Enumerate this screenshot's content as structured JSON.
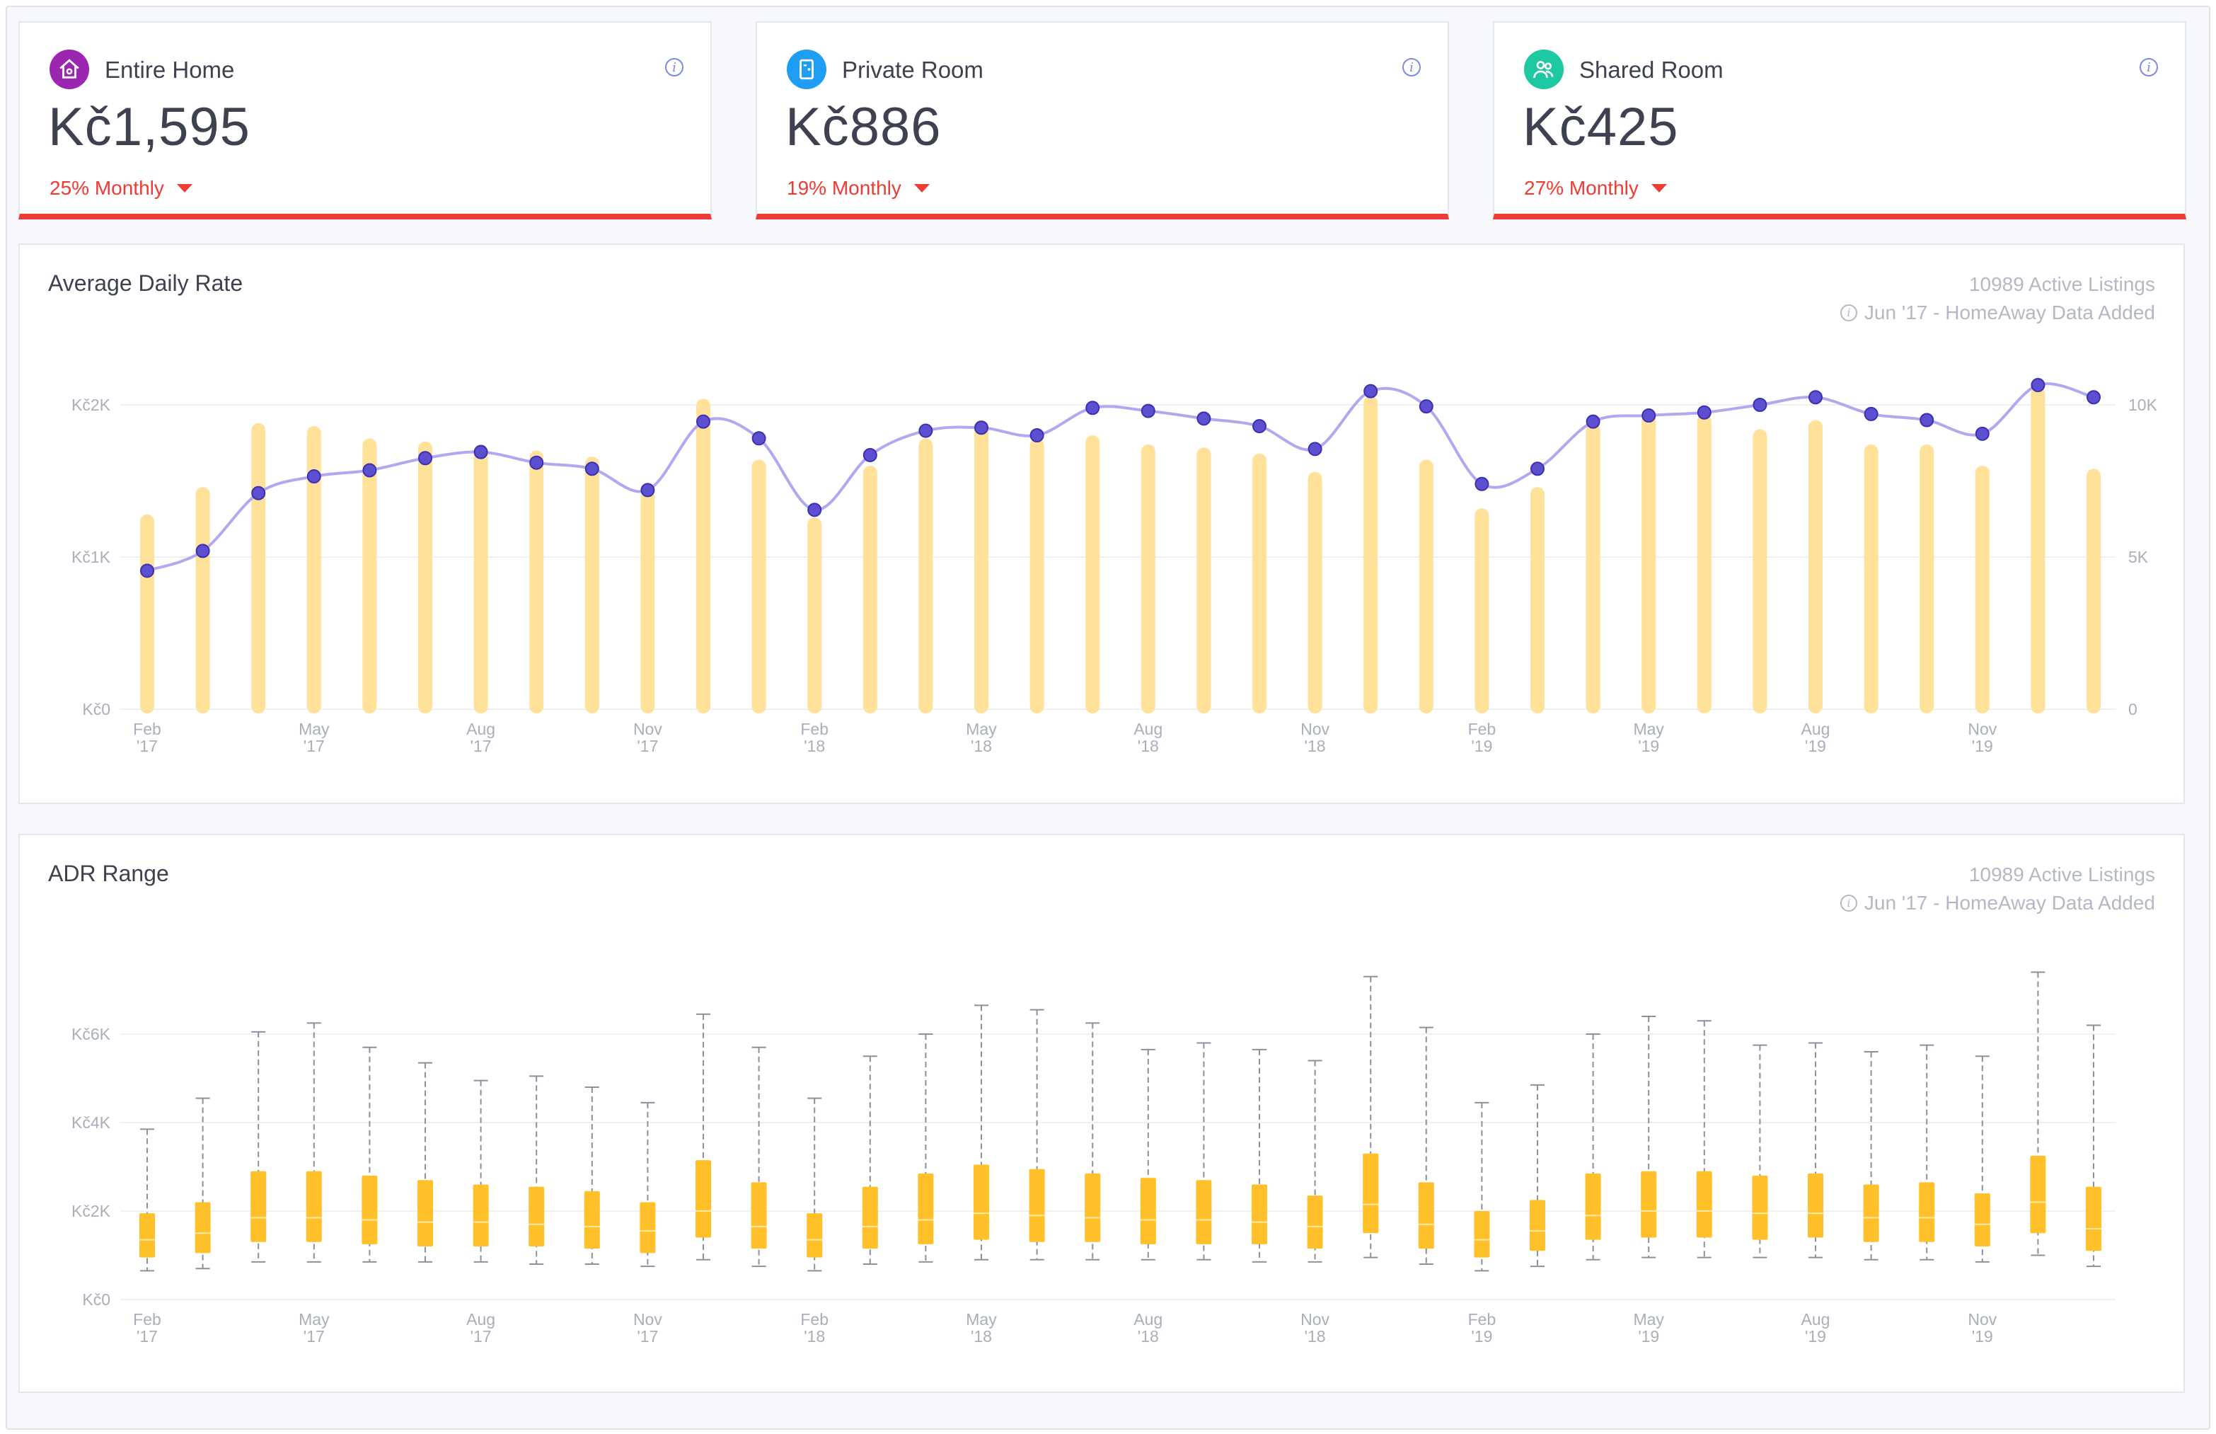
{
  "kpis": [
    {
      "label": "Entire Home",
      "value": "Kč1,595",
      "change": "25% Monthly",
      "icon": "home-icon",
      "color": "#9b27b0"
    },
    {
      "label": "Private Room",
      "value": "Kč886",
      "change": "19% Monthly",
      "icon": "door-icon",
      "color": "#1e9df2"
    },
    {
      "label": "Shared Room",
      "value": "Kč425",
      "change": "27% Monthly",
      "icon": "people-icon",
      "color": "#1ec8a0"
    }
  ],
  "colors": {
    "negative": "#ee3b33",
    "bars": "#ffe199",
    "line": "#b3a8f0",
    "points": "#5c4fd0",
    "boxes": "#ffc02a"
  },
  "adr": {
    "title": "Average Daily Rate",
    "active_listings": "10989 Active Listings",
    "note": "Jun '17 - HomeAway Data Added"
  },
  "range": {
    "title": "ADR Range",
    "active_listings": "10989 Active Listings",
    "note": "Jun '17 - HomeAway Data Added"
  },
  "chart_data": [
    {
      "type": "bar",
      "title": "Average Daily Rate",
      "months": [
        "Feb '17",
        "Mar '17",
        "Apr '17",
        "May '17",
        "Jun '17",
        "Jul '17",
        "Aug '17",
        "Sep '17",
        "Oct '17",
        "Nov '17",
        "Dec '17",
        "Jan '18",
        "Feb '18",
        "Mar '18",
        "Apr '18",
        "May '18",
        "Jun '18",
        "Jul '18",
        "Aug '18",
        "Sep '18",
        "Oct '18",
        "Nov '18",
        "Dec '18",
        "Jan '19",
        "Feb '19",
        "Mar '19",
        "Apr '19",
        "May '19",
        "Jun '19",
        "Jul '19",
        "Aug '19",
        "Sep '19",
        "Oct '19",
        "Nov '19",
        "Dec '19",
        "Jan '20"
      ],
      "x_tick_labels": [
        {
          "month": "Feb",
          "year": "'17",
          "index": 0
        },
        {
          "month": "May",
          "year": "'17",
          "index": 3
        },
        {
          "month": "Aug",
          "year": "'17",
          "index": 6
        },
        {
          "month": "Nov",
          "year": "'17",
          "index": 9
        },
        {
          "month": "Feb",
          "year": "'18",
          "index": 12
        },
        {
          "month": "May",
          "year": "'18",
          "index": 15
        },
        {
          "month": "Aug",
          "year": "'18",
          "index": 18
        },
        {
          "month": "Nov",
          "year": "'18",
          "index": 21
        },
        {
          "month": "Feb",
          "year": "'19",
          "index": 24
        },
        {
          "month": "May",
          "year": "'19",
          "index": 27
        },
        {
          "month": "Aug",
          "year": "'19",
          "index": 30
        },
        {
          "month": "Nov",
          "year": "'19",
          "index": 33
        }
      ],
      "left_axis": {
        "ticks": [
          0,
          1000,
          2000
        ],
        "labels": [
          "Kč0",
          "Kč1K",
          "Kč2K"
        ],
        "range": [
          0,
          2000
        ]
      },
      "right_axis": {
        "ticks": [
          0,
          5000,
          10000
        ],
        "labels": [
          "0",
          "5K",
          "10K"
        ],
        "range": [
          0,
          10000
        ]
      },
      "series": [
        {
          "axis": "right",
          "kind": "bar",
          "values": [
            6400,
            7300,
            9400,
            9300,
            8900,
            8800,
            8700,
            8500,
            8300,
            7200,
            10200,
            8200,
            6300,
            8000,
            8900,
            9500,
            8900,
            9000,
            8700,
            8600,
            8400,
            7800,
            10300,
            8200,
            6600,
            7300,
            9400,
            9700,
            9700,
            9200,
            9500,
            8700,
            8700,
            8000,
            10600,
            7900
          ]
        },
        {
          "axis": "left",
          "kind": "line",
          "values": [
            910,
            1040,
            1420,
            1530,
            1570,
            1650,
            1690,
            1620,
            1580,
            1440,
            1890,
            1780,
            1310,
            1670,
            1830,
            1850,
            1800,
            1980,
            1960,
            1910,
            1860,
            1710,
            2090,
            1990,
            1480,
            1580,
            1890,
            1930,
            1950,
            2000,
            2050,
            1940,
            1900,
            1810,
            2130,
            2050
          ]
        }
      ],
      "grid": true
    },
    {
      "type": "box",
      "title": "ADR Range",
      "months": [
        "Feb '17",
        "Mar '17",
        "Apr '17",
        "May '17",
        "Jun '17",
        "Jul '17",
        "Aug '17",
        "Sep '17",
        "Oct '17",
        "Nov '17",
        "Dec '17",
        "Jan '18",
        "Feb '18",
        "Mar '18",
        "Apr '18",
        "May '18",
        "Jun '18",
        "Jul '18",
        "Aug '18",
        "Sep '18",
        "Oct '18",
        "Nov '18",
        "Dec '18",
        "Jan '19",
        "Feb '19",
        "Mar '19",
        "Apr '19",
        "May '19",
        "Jun '19",
        "Jul '19",
        "Aug '19",
        "Sep '19",
        "Oct '19",
        "Nov '19",
        "Dec '19",
        "Jan '20"
      ],
      "y_axis": {
        "ticks": [
          0,
          2000,
          4000,
          6000
        ],
        "labels": [
          "Kč0",
          "Kč2K",
          "Kč4K",
          "Kč6K"
        ]
      },
      "boxes": [
        {
          "min": 650,
          "q1": 950,
          "median": 1350,
          "q3": 1950,
          "max": 3850
        },
        {
          "min": 700,
          "q1": 1050,
          "median": 1500,
          "q3": 2200,
          "max": 4550
        },
        {
          "min": 850,
          "q1": 1300,
          "median": 1850,
          "q3": 2900,
          "max": 6050
        },
        {
          "min": 850,
          "q1": 1300,
          "median": 1850,
          "q3": 2900,
          "max": 6250
        },
        {
          "min": 850,
          "q1": 1250,
          "median": 1800,
          "q3": 2800,
          "max": 5700
        },
        {
          "min": 850,
          "q1": 1200,
          "median": 1750,
          "q3": 2700,
          "max": 5350
        },
        {
          "min": 850,
          "q1": 1200,
          "median": 1750,
          "q3": 2600,
          "max": 4950
        },
        {
          "min": 800,
          "q1": 1200,
          "median": 1700,
          "q3": 2550,
          "max": 5050
        },
        {
          "min": 800,
          "q1": 1150,
          "median": 1650,
          "q3": 2450,
          "max": 4800
        },
        {
          "min": 750,
          "q1": 1050,
          "median": 1550,
          "q3": 2200,
          "max": 4450
        },
        {
          "min": 900,
          "q1": 1400,
          "median": 2000,
          "q3": 3150,
          "max": 6450
        },
        {
          "min": 750,
          "q1": 1150,
          "median": 1650,
          "q3": 2650,
          "max": 5700
        },
        {
          "min": 650,
          "q1": 950,
          "median": 1350,
          "q3": 1950,
          "max": 4550
        },
        {
          "min": 800,
          "q1": 1150,
          "median": 1650,
          "q3": 2550,
          "max": 5500
        },
        {
          "min": 850,
          "q1": 1250,
          "median": 1800,
          "q3": 2850,
          "max": 6000
        },
        {
          "min": 900,
          "q1": 1350,
          "median": 1950,
          "q3": 3050,
          "max": 6650
        },
        {
          "min": 900,
          "q1": 1300,
          "median": 1900,
          "q3": 2950,
          "max": 6550
        },
        {
          "min": 900,
          "q1": 1300,
          "median": 1850,
          "q3": 2850,
          "max": 6250
        },
        {
          "min": 900,
          "q1": 1250,
          "median": 1800,
          "q3": 2750,
          "max": 5650
        },
        {
          "min": 900,
          "q1": 1250,
          "median": 1800,
          "q3": 2700,
          "max": 5800
        },
        {
          "min": 850,
          "q1": 1250,
          "median": 1750,
          "q3": 2600,
          "max": 5650
        },
        {
          "min": 850,
          "q1": 1150,
          "median": 1650,
          "q3": 2350,
          "max": 5400
        },
        {
          "min": 950,
          "q1": 1500,
          "median": 2150,
          "q3": 3300,
          "max": 7300
        },
        {
          "min": 800,
          "q1": 1150,
          "median": 1700,
          "q3": 2650,
          "max": 6150
        },
        {
          "min": 650,
          "q1": 950,
          "median": 1350,
          "q3": 2000,
          "max": 4450
        },
        {
          "min": 750,
          "q1": 1100,
          "median": 1550,
          "q3": 2250,
          "max": 4850
        },
        {
          "min": 900,
          "q1": 1350,
          "median": 1900,
          "q3": 2850,
          "max": 6000
        },
        {
          "min": 950,
          "q1": 1400,
          "median": 2000,
          "q3": 2900,
          "max": 6400
        },
        {
          "min": 950,
          "q1": 1400,
          "median": 2000,
          "q3": 2900,
          "max": 6300
        },
        {
          "min": 950,
          "q1": 1350,
          "median": 1950,
          "q3": 2800,
          "max": 5750
        },
        {
          "min": 950,
          "q1": 1400,
          "median": 1950,
          "q3": 2850,
          "max": 5800
        },
        {
          "min": 900,
          "q1": 1300,
          "median": 1850,
          "q3": 2600,
          "max": 5600
        },
        {
          "min": 900,
          "q1": 1300,
          "median": 1850,
          "q3": 2650,
          "max": 5750
        },
        {
          "min": 850,
          "q1": 1200,
          "median": 1700,
          "q3": 2400,
          "max": 5500
        },
        {
          "min": 1000,
          "q1": 1500,
          "median": 2200,
          "q3": 3250,
          "max": 7400
        },
        {
          "min": 750,
          "q1": 1100,
          "median": 1600,
          "q3": 2550,
          "max": 6200
        }
      ],
      "x_tick_labels": "same as Average Daily Rate",
      "grid": true
    }
  ]
}
